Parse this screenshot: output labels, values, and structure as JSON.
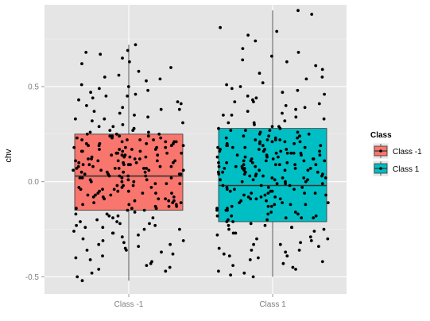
{
  "chart_data": {
    "type": "boxplot",
    "title": "",
    "xlabel": "",
    "ylabel": "chv",
    "ylim": [
      -0.59,
      0.93
    ],
    "yticks": [
      -0.5,
      0.0,
      0.5
    ],
    "ytick_labels": [
      "-0.5",
      "0.0",
      "0.5"
    ],
    "categories": [
      "Class -1",
      "Class 1"
    ],
    "grid": true,
    "legend": {
      "title": "Class",
      "position": "right",
      "entries": [
        "Class -1",
        "Class 1"
      ]
    },
    "colors": {
      "Class -1": "#F8766D",
      "Class 1": "#00BFC4",
      "panel": "#E5E5E5",
      "grid": "#FFFFFF"
    },
    "boxes": [
      {
        "name": "Class -1",
        "whisker_low": -0.52,
        "q1": -0.15,
        "median": 0.03,
        "q3": 0.25,
        "whisker_high": 0.72
      },
      {
        "name": "Class 1",
        "whisker_low": -0.5,
        "q1": -0.21,
        "median": -0.02,
        "q3": 0.28,
        "whisker_high": 0.9
      }
    ],
    "jitter_points": {
      "Class -1": [
        0.69,
        0.72,
        0.68,
        0.67,
        0.65,
        0.63,
        0.62,
        0.6,
        0.58,
        0.56,
        0.55,
        0.54,
        0.53,
        0.51,
        0.5,
        0.49,
        0.48,
        0.47,
        0.46,
        0.45,
        0.44,
        0.43,
        0.42,
        0.41,
        0.4,
        0.39,
        0.38,
        0.37,
        0.36,
        0.35,
        0.34,
        0.33,
        0.32,
        0.31,
        0.3,
        0.29,
        0.28,
        0.27,
        0.26,
        0.25,
        0.24,
        0.23,
        0.22,
        0.21,
        0.2,
        0.19,
        0.18,
        0.17,
        0.16,
        0.15,
        0.14,
        0.13,
        0.12,
        0.11,
        0.1,
        0.09,
        0.08,
        0.07,
        0.06,
        0.05,
        0.04,
        0.03,
        0.02,
        0.01,
        0.0,
        -0.01,
        -0.02,
        -0.03,
        -0.04,
        -0.05,
        -0.06,
        -0.07,
        -0.08,
        -0.09,
        -0.1,
        -0.11,
        -0.12,
        -0.13,
        -0.14,
        -0.15,
        -0.16,
        -0.17,
        -0.18,
        -0.19,
        -0.2,
        -0.21,
        -0.22,
        -0.23,
        -0.24,
        -0.25,
        -0.26,
        -0.27,
        -0.28,
        -0.29,
        -0.3,
        -0.31,
        -0.32,
        -0.33,
        -0.34,
        -0.35,
        -0.36,
        -0.37,
        -0.38,
        -0.39,
        -0.4,
        -0.41,
        -0.42,
        -0.43,
        -0.44,
        -0.45,
        -0.46,
        -0.47,
        -0.48,
        -0.5,
        -0.52,
        0.33,
        0.27,
        0.21,
        0.15,
        0.09,
        0.03,
        -0.03,
        -0.09,
        -0.15,
        -0.21,
        -0.27,
        -0.33,
        0.45,
        0.38,
        0.19,
        0.12,
        0.06,
        -0.06,
        -0.12,
        -0.18,
        -0.24,
        -0.36,
        0.24,
        0.18,
        0.11,
        0.05,
        -0.01,
        -0.07,
        -0.13,
        -0.19,
        -0.25,
        -0.31,
        0.29,
        0.16,
        0.08,
        0.02,
        -0.04,
        -0.11,
        -0.17,
        -0.23,
        0.22,
        0.14,
        0.07,
        -0.02,
        -0.08,
        -0.14,
        -0.22,
        0.2,
        0.1,
        0.01,
        -0.05,
        -0.1,
        0.26,
        0.13,
        0.04,
        -0.06,
        0.17,
        0.09,
        -0.03,
        0.23,
        0.11,
        0.0,
        0.19,
        0.07,
        -0.09,
        0.21,
        0.05,
        0.15,
        0.12,
        0.03,
        0.25,
        0.18,
        0.08,
        -0.12,
        0.16,
        0.02,
        0.22,
        0.1,
        -0.04,
        0.14,
        0.06,
        0.2,
        0.01,
        0.24,
        0.13,
        -0.07,
        0.17,
        0.04,
        0.11,
        -0.01,
        0.09,
        0.23,
        0.15,
        -0.08,
        0.07,
        0.19,
        -0.13,
        0.05,
        0.21,
        0.12,
        -0.02,
        0.18,
        0.08,
        0.14,
        0.03,
        -0.11,
        0.1,
        0.16,
        0.0,
        0.22,
        0.06,
        -0.05,
        0.13,
        0.24,
        -0.14,
        0.02,
        0.17,
        0.09,
        -0.1,
        0.2,
        0.04,
        0.11,
        -0.06,
        0.15,
        0.07,
        0.25
      ],
      "Class 1": [
        0.9,
        0.88,
        0.81,
        0.79,
        0.77,
        0.74,
        0.7,
        0.68,
        0.66,
        0.64,
        0.63,
        0.61,
        0.59,
        0.57,
        0.55,
        0.54,
        0.52,
        0.51,
        0.5,
        0.49,
        0.48,
        0.47,
        0.46,
        0.45,
        0.44,
        0.43,
        0.42,
        0.41,
        0.4,
        0.39,
        0.38,
        0.37,
        0.36,
        0.35,
        0.34,
        0.33,
        0.32,
        0.31,
        0.3,
        0.29,
        0.28,
        0.27,
        0.26,
        0.25,
        0.24,
        0.23,
        0.22,
        0.21,
        0.2,
        0.19,
        0.18,
        0.17,
        0.16,
        0.15,
        0.14,
        0.13,
        0.12,
        0.11,
        0.1,
        0.09,
        0.08,
        0.07,
        0.06,
        0.05,
        0.04,
        0.03,
        0.02,
        0.01,
        0.0,
        -0.01,
        -0.02,
        -0.03,
        -0.04,
        -0.05,
        -0.06,
        -0.07,
        -0.08,
        -0.09,
        -0.1,
        -0.11,
        -0.12,
        -0.13,
        -0.14,
        -0.15,
        -0.16,
        -0.17,
        -0.18,
        -0.19,
        -0.2,
        -0.21,
        -0.22,
        -0.23,
        -0.24,
        -0.25,
        -0.26,
        -0.27,
        -0.28,
        -0.29,
        -0.3,
        -0.31,
        -0.32,
        -0.33,
        -0.34,
        -0.35,
        -0.36,
        -0.37,
        -0.38,
        -0.39,
        -0.4,
        -0.41,
        -0.42,
        -0.43,
        -0.44,
        -0.45,
        -0.46,
        -0.47,
        -0.48,
        -0.49,
        -0.5,
        0.35,
        0.27,
        0.21,
        0.15,
        0.09,
        0.03,
        -0.03,
        -0.09,
        -0.15,
        -0.21,
        -0.27,
        -0.33,
        -0.39,
        0.42,
        0.31,
        0.19,
        0.12,
        0.06,
        -0.06,
        -0.12,
        -0.18,
        -0.24,
        -0.3,
        -0.36,
        0.24,
        0.18,
        0.11,
        0.05,
        -0.01,
        -0.07,
        -0.13,
        -0.19,
        -0.25,
        0.29,
        0.16,
        0.08,
        0.02,
        -0.04,
        -0.11,
        -0.17,
        -0.23,
        0.22,
        0.14,
        0.07,
        -0.02,
        -0.08,
        -0.14,
        -0.2,
        0.26,
        0.1,
        0.01,
        -0.05,
        -0.1,
        0.13,
        0.04,
        -0.06,
        0.17,
        0.09,
        -0.03,
        0.23,
        0.11,
        0.0,
        0.19,
        0.07,
        -0.09,
        0.21,
        0.05,
        0.15,
        0.12,
        0.03,
        0.25,
        0.18,
        0.08,
        -0.12,
        0.16,
        0.02,
        0.22,
        0.1,
        -0.04,
        0.14,
        0.06,
        0.2,
        0.01,
        0.24,
        0.13,
        -0.07,
        0.17,
        0.04,
        0.11,
        -0.01,
        0.09,
        0.23,
        0.15,
        -0.08,
        0.07,
        0.19,
        -0.13,
        0.05,
        0.21,
        0.12,
        -0.02,
        0.18,
        0.08,
        0.14,
        0.03,
        -0.11,
        0.1,
        0.16,
        0.0,
        0.22,
        0.06,
        -0.05,
        0.13,
        0.27,
        -0.15,
        0.02,
        0.17,
        0.09,
        -0.16,
        0.2,
        0.04,
        0.11,
        -0.06,
        0.15,
        0.07,
        0.28,
        -0.18,
        0.01,
        0.12,
        -0.19
      ]
    }
  }
}
